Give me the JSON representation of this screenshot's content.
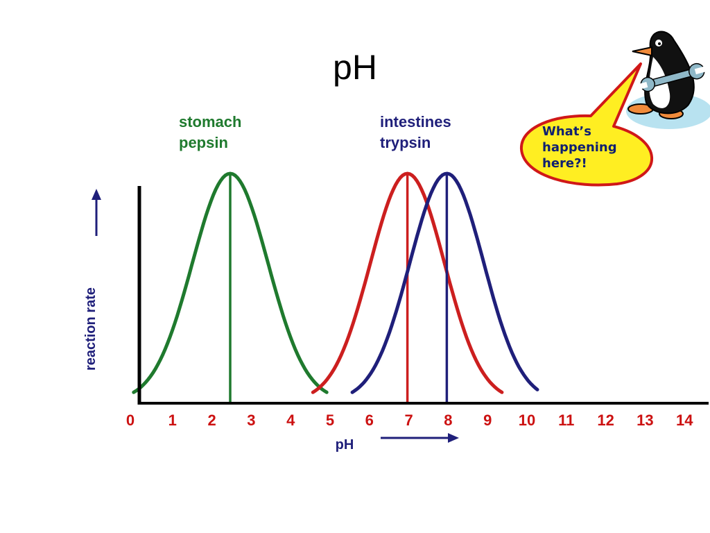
{
  "slide": {
    "title": "pH",
    "speech_bubble": [
      "What’s",
      "happening",
      "here?!"
    ],
    "mascot_icon": "penguin-with-wrench-icon",
    "colors": {
      "pepsin": "#1f7a2e",
      "trypsin": "#1f1f7a",
      "third_curve": "#cc1f1f",
      "tick_labels": "#cc1111",
      "axis": "#000000",
      "bubble_fill": "#ffee22",
      "bubble_stroke": "#d01818"
    }
  },
  "chart_data": {
    "type": "line",
    "title": "pH",
    "xlabel": "pH",
    "ylabel": "reaction rate",
    "xlim": [
      0,
      14
    ],
    "x_ticks": [
      "0",
      "1",
      "2",
      "3",
      "4",
      "5",
      "6",
      "7",
      "8",
      "9",
      "10",
      "11",
      "12",
      "13",
      "14"
    ],
    "grid": false,
    "series": [
      {
        "name": "stomach pepsin",
        "label_lines": [
          "stomach",
          "pepsin"
        ],
        "optimum_ph": 2.5,
        "range": [
          0.05,
          4.95
        ],
        "peak": 1.0
      },
      {
        "name": "",
        "optimum_ph": 7.0,
        "range": [
          4.6,
          9.4
        ],
        "peak": 1.0
      },
      {
        "name": "intestines trypsin",
        "label_lines": [
          "intestines",
          "trypsin"
        ],
        "optimum_ph": 8.0,
        "range": [
          5.6,
          10.3
        ],
        "peak": 1.0
      }
    ]
  }
}
